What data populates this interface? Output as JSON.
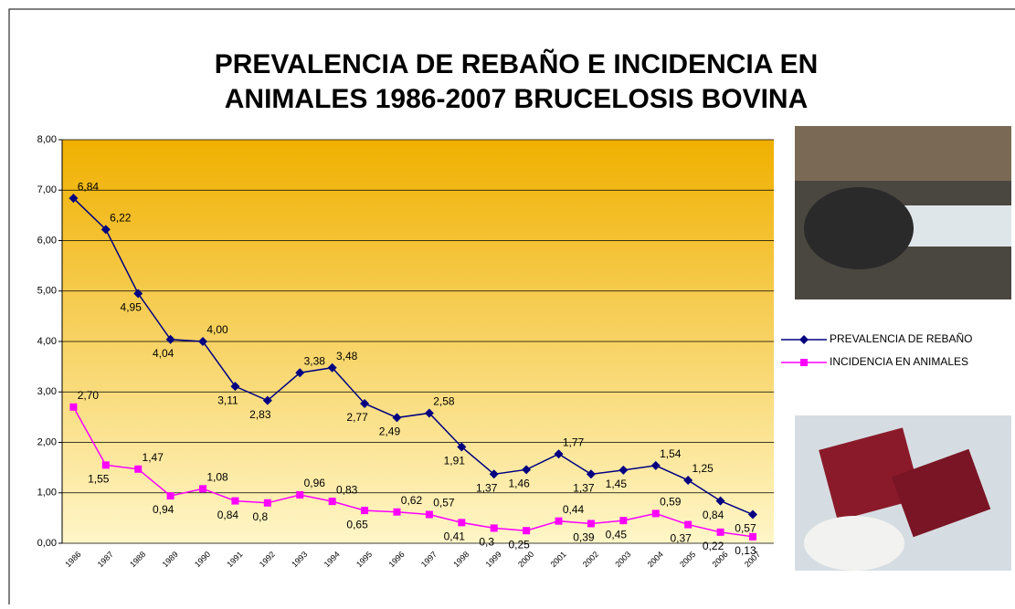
{
  "chart_data": {
    "type": "line",
    "title": "PREVALENCIA DE REBAÑO E INCIDENCIA EN ANIMALES 1986-2007 BRUCELOSIS BOVINA",
    "categories": [
      "1986",
      "1987",
      "1988",
      "1989",
      "1990",
      "1991",
      "1992",
      "1993",
      "1994",
      "1995",
      "1996",
      "1997",
      "1998",
      "1999",
      "2000",
      "2001",
      "2002",
      "2003",
      "2004",
      "2005",
      "2006",
      "2007"
    ],
    "series": [
      {
        "name": "PREVALENCIA DE REBAÑO",
        "color": "#000080",
        "values": [
          6.84,
          6.22,
          4.95,
          4.04,
          4.0,
          3.11,
          2.83,
          3.38,
          3.48,
          2.77,
          2.49,
          2.58,
          1.91,
          1.37,
          1.46,
          1.77,
          1.37,
          1.45,
          1.54,
          1.25,
          0.84,
          0.57
        ],
        "value_labels": [
          "6,84",
          "6,22",
          "4,95",
          "4,04",
          "4,00",
          "3,11",
          "2,83",
          "3,38",
          "3,48",
          "2,77",
          "2,49",
          "2,58",
          "1,91",
          "1,37",
          "1,46",
          "1,77",
          "1,37",
          "1,45",
          "1,54",
          "1,25",
          "0,84",
          "0,57"
        ]
      },
      {
        "name": "INCIDENCIA EN ANIMALES",
        "color": "#ff00ff",
        "values": [
          2.7,
          1.55,
          1.47,
          0.94,
          1.08,
          0.84,
          0.8,
          0.96,
          0.83,
          0.65,
          0.62,
          0.57,
          0.41,
          0.3,
          0.25,
          0.44,
          0.39,
          0.45,
          0.59,
          0.37,
          0.22,
          0.13
        ],
        "value_labels": [
          "2,70",
          "1,55",
          "1,47",
          "0,94",
          "1,08",
          "0,84",
          "0,8",
          "0,96",
          "0,83",
          "0,65",
          "0,62",
          "0,57",
          "0,41",
          "0,3",
          "0,25",
          "0,44",
          "0,39",
          "0,45",
          "0,59",
          "0,37",
          "0,22",
          "0,13"
        ]
      }
    ],
    "ylim": [
      0,
      8
    ],
    "yticks": [
      {
        "value": 0,
        "label": "0,00"
      },
      {
        "value": 1,
        "label": "1,00"
      },
      {
        "value": 2,
        "label": "2,00"
      },
      {
        "value": 3,
        "label": "3,00"
      },
      {
        "value": 4,
        "label": "4,00"
      },
      {
        "value": 5,
        "label": "5,00"
      },
      {
        "value": 6,
        "label": "6,00"
      },
      {
        "value": 7,
        "label": "7,00"
      },
      {
        "value": 8,
        "label": "8,00"
      }
    ],
    "grid": true,
    "legend": "right"
  }
}
